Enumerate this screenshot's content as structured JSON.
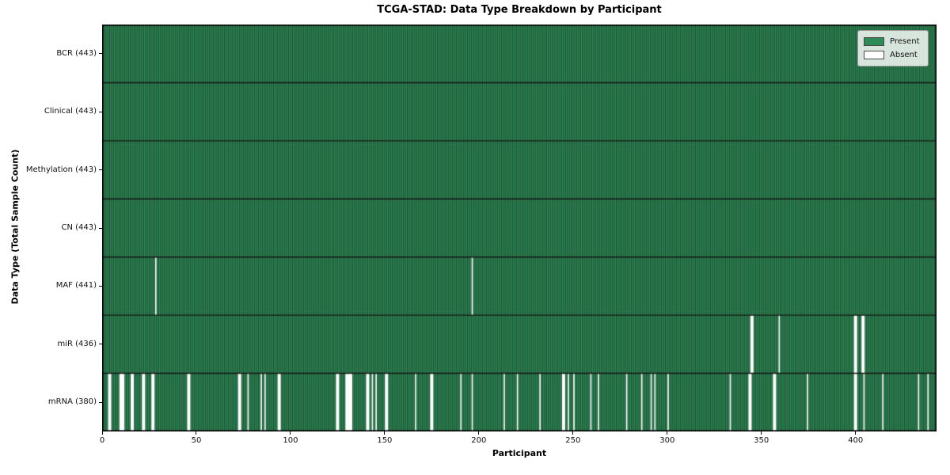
{
  "figure": {
    "title": "TCGA-STAD: Data Type Breakdown by Participant",
    "xlabel": "Participant",
    "ylabel": "Data Type (Total Sample Count)"
  },
  "legend": {
    "items": [
      {
        "label": "Present",
        "color": "#2e8b57"
      },
      {
        "label": "Absent",
        "color": "#ffffff"
      }
    ]
  },
  "chart_data": {
    "type": "heatmap",
    "title": "TCGA-STAD: Data Type Breakdown by Participant",
    "xlabel": "Participant",
    "ylabel": "Data Type (Total Sample Count)",
    "n_participants": 443,
    "xlim": [
      0,
      443
    ],
    "x_ticks": [
      0,
      50,
      100,
      150,
      200,
      250,
      300,
      350,
      400
    ],
    "grid": false,
    "legend_position": "upper right",
    "colors": {
      "present": "#2e8b57",
      "absent": "#ffffff",
      "cell_edge": "#1c432d",
      "row_separator": "#141414",
      "frame": "#000000"
    },
    "rows": [
      {
        "name": "BCR",
        "label": "BCR (443)",
        "present_count": 443,
        "absent_participants": []
      },
      {
        "name": "Clinical",
        "label": "Clinical (443)",
        "present_count": 443,
        "absent_participants": []
      },
      {
        "name": "Methylation",
        "label": "Methylation (443)",
        "present_count": 443,
        "absent_participants": []
      },
      {
        "name": "CN",
        "label": "CN (443)",
        "present_count": 443,
        "absent_participants": []
      },
      {
        "name": "MAF",
        "label": "MAF (441)",
        "present_count": 441,
        "absent_participants": [
          28,
          196
        ]
      },
      {
        "name": "miR",
        "label": "miR (436)",
        "present_count": 436,
        "absent_participants": [
          344,
          345,
          359,
          399,
          400,
          403,
          404
        ]
      },
      {
        "name": "mRNA",
        "label": "mRNA (380)",
        "present_count": 380,
        "absent_participants": [
          3,
          4,
          9,
          10,
          11,
          15,
          16,
          21,
          22,
          26,
          27,
          45,
          46,
          72,
          73,
          77,
          84,
          86,
          93,
          94,
          124,
          125,
          129,
          130,
          131,
          132,
          140,
          141,
          143,
          145,
          150,
          151,
          166,
          174,
          175,
          190,
          196,
          213,
          220,
          232,
          244,
          245,
          247,
          250,
          259,
          263,
          278,
          286,
          291,
          293,
          300,
          333,
          343,
          344,
          356,
          357,
          374,
          399,
          400,
          404,
          414,
          433,
          438
        ]
      }
    ]
  }
}
